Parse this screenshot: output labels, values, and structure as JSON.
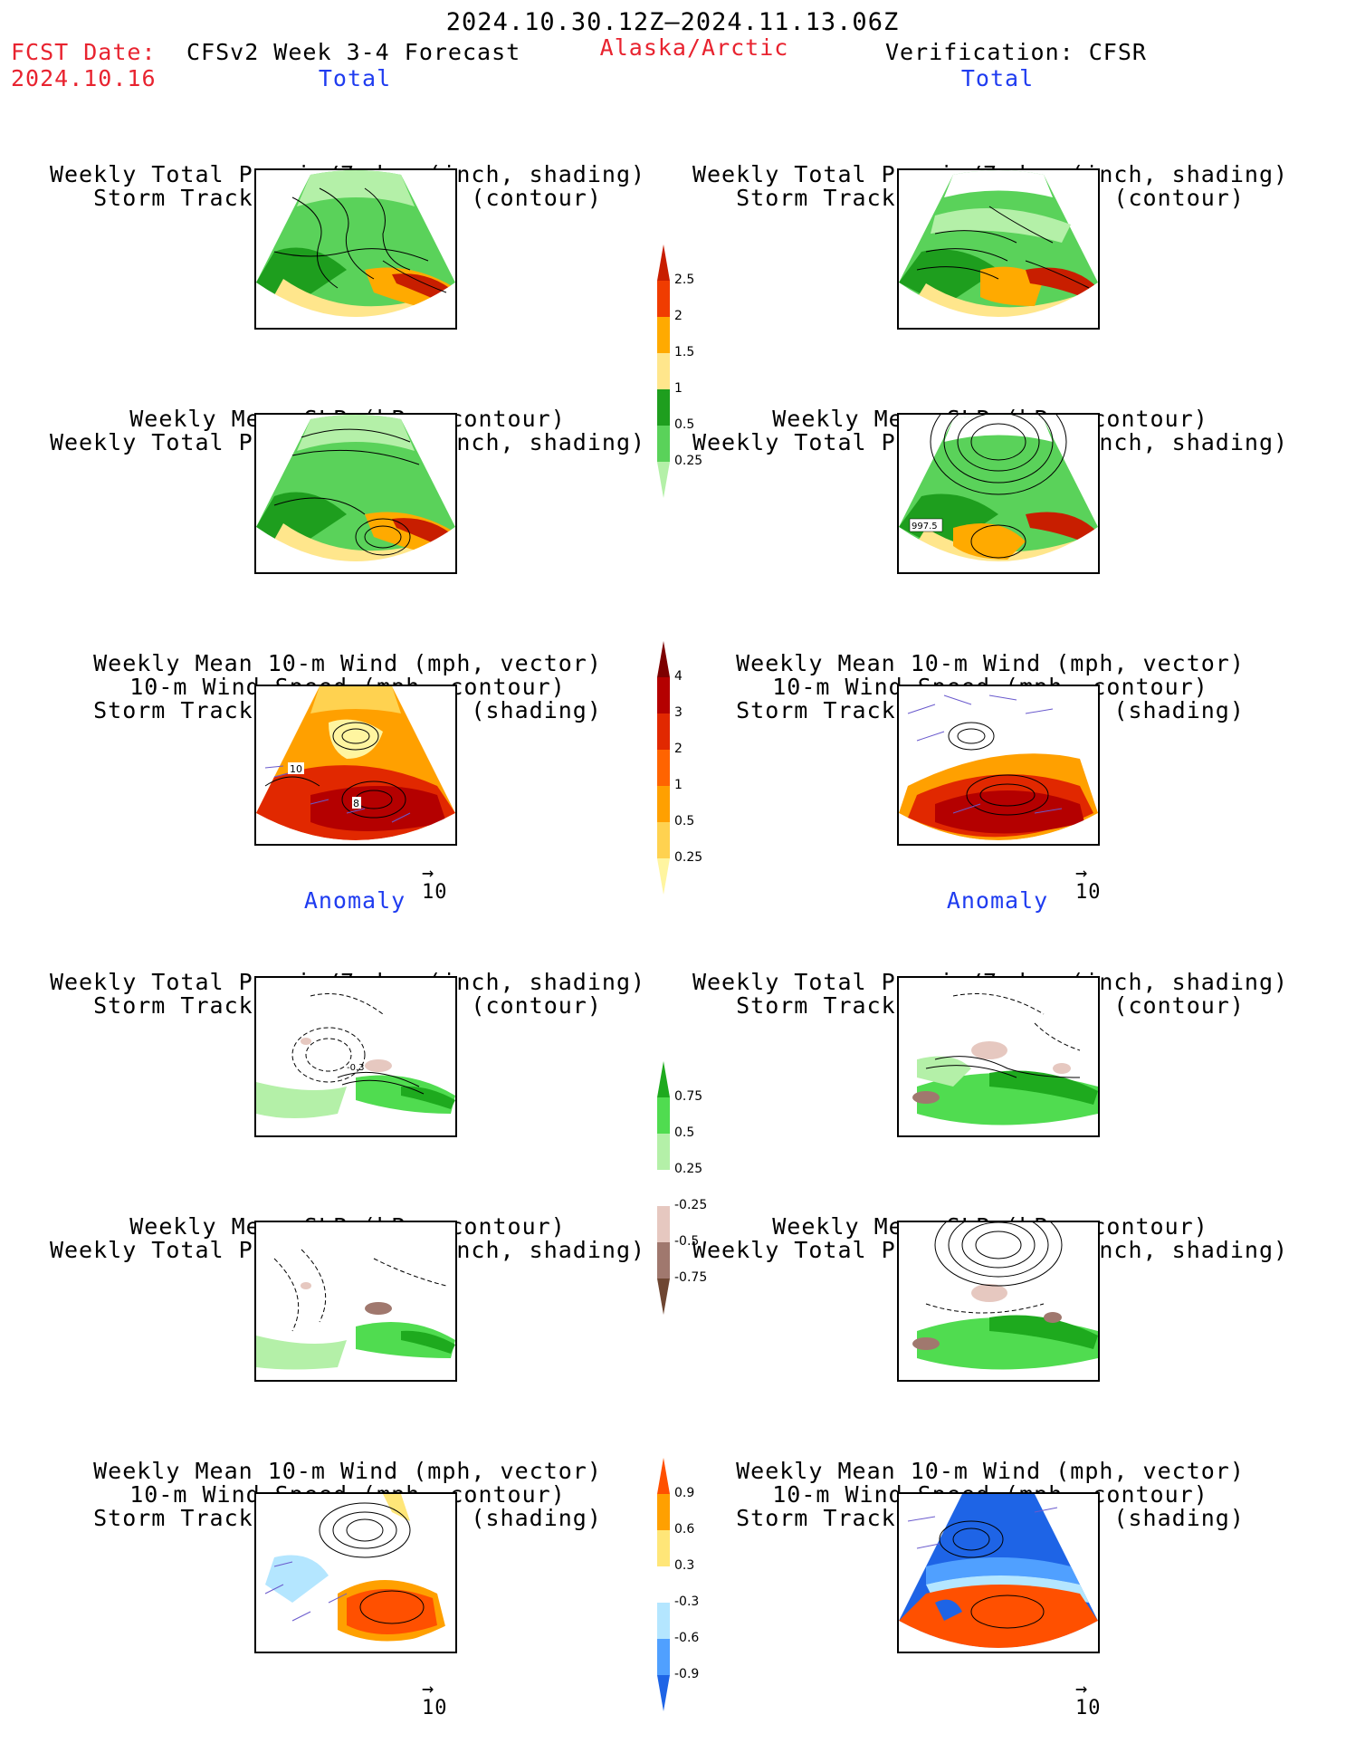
{
  "header": {
    "date_range": "2024.10.30.12Z–2024.11.13.06Z",
    "fcst_label": "FCST Date:",
    "fcst_date": "2024.10.16",
    "model": "CFSv2 Week 3-4 Forecast",
    "region": "Alaska/Arctic",
    "verification": "Verification: CFSR"
  },
  "sections": {
    "total": "Total",
    "anomaly": "Anomaly"
  },
  "titles": {
    "precip_storm": [
      "Weekly Total Precip/7-day (inch, shading)",
      "Storm Track Density/7-day (contour)"
    ],
    "slp_precip": [
      "Weekly Mean SLP (hPa, contour)",
      "Weekly Total Precip/7-day (inch, shading)"
    ],
    "wind": [
      "Weekly Mean 10-m Wind (mph, vector)",
      "10-m Wind Speed (mph, contour)",
      "Storm Track Density/7-day (shading)"
    ]
  },
  "vector_scale": "10",
  "map_labels": {
    "wind_10": "10",
    "wind_8": "8",
    "slp_997": "997.5",
    "anom_neg": "-0.3"
  },
  "colorbars": {
    "precip_total": {
      "labels": [
        "0.25",
        "0.5",
        "1",
        "1.5",
        "2",
        "2.5"
      ],
      "colors": [
        "#b4f0a8",
        "#5ad25a",
        "#1e9e1e",
        "#ffe68c",
        "#ffaa00",
        "#f03c00",
        "#c81e00"
      ]
    },
    "storm_total": {
      "labels": [
        "0.25",
        "0.5",
        "1",
        "2",
        "3",
        "4"
      ],
      "colors": [
        "#fff5a0",
        "#ffd250",
        "#ffa000",
        "#ff6400",
        "#e12800",
        "#b40000",
        "#7d0000"
      ]
    },
    "precip_anom": {
      "labels": [
        "-0.75",
        "-0.5",
        "-0.25",
        "0.25",
        "0.5",
        "0.75"
      ],
      "colors": [
        "#6e4632",
        "#a0786e",
        "#e6c8c0",
        "#ffffff",
        "#b4f0a8",
        "#50dc50",
        "#1eaa1e"
      ]
    },
    "storm_anom": {
      "labels": [
        "-0.9",
        "-0.6",
        "-0.3",
        "0.3",
        "0.6",
        "0.9"
      ],
      "colors": [
        "#1e64e6",
        "#50a0ff",
        "#b4e6ff",
        "#ffffff",
        "#ffe678",
        "#ffa000",
        "#ff5000"
      ]
    }
  }
}
